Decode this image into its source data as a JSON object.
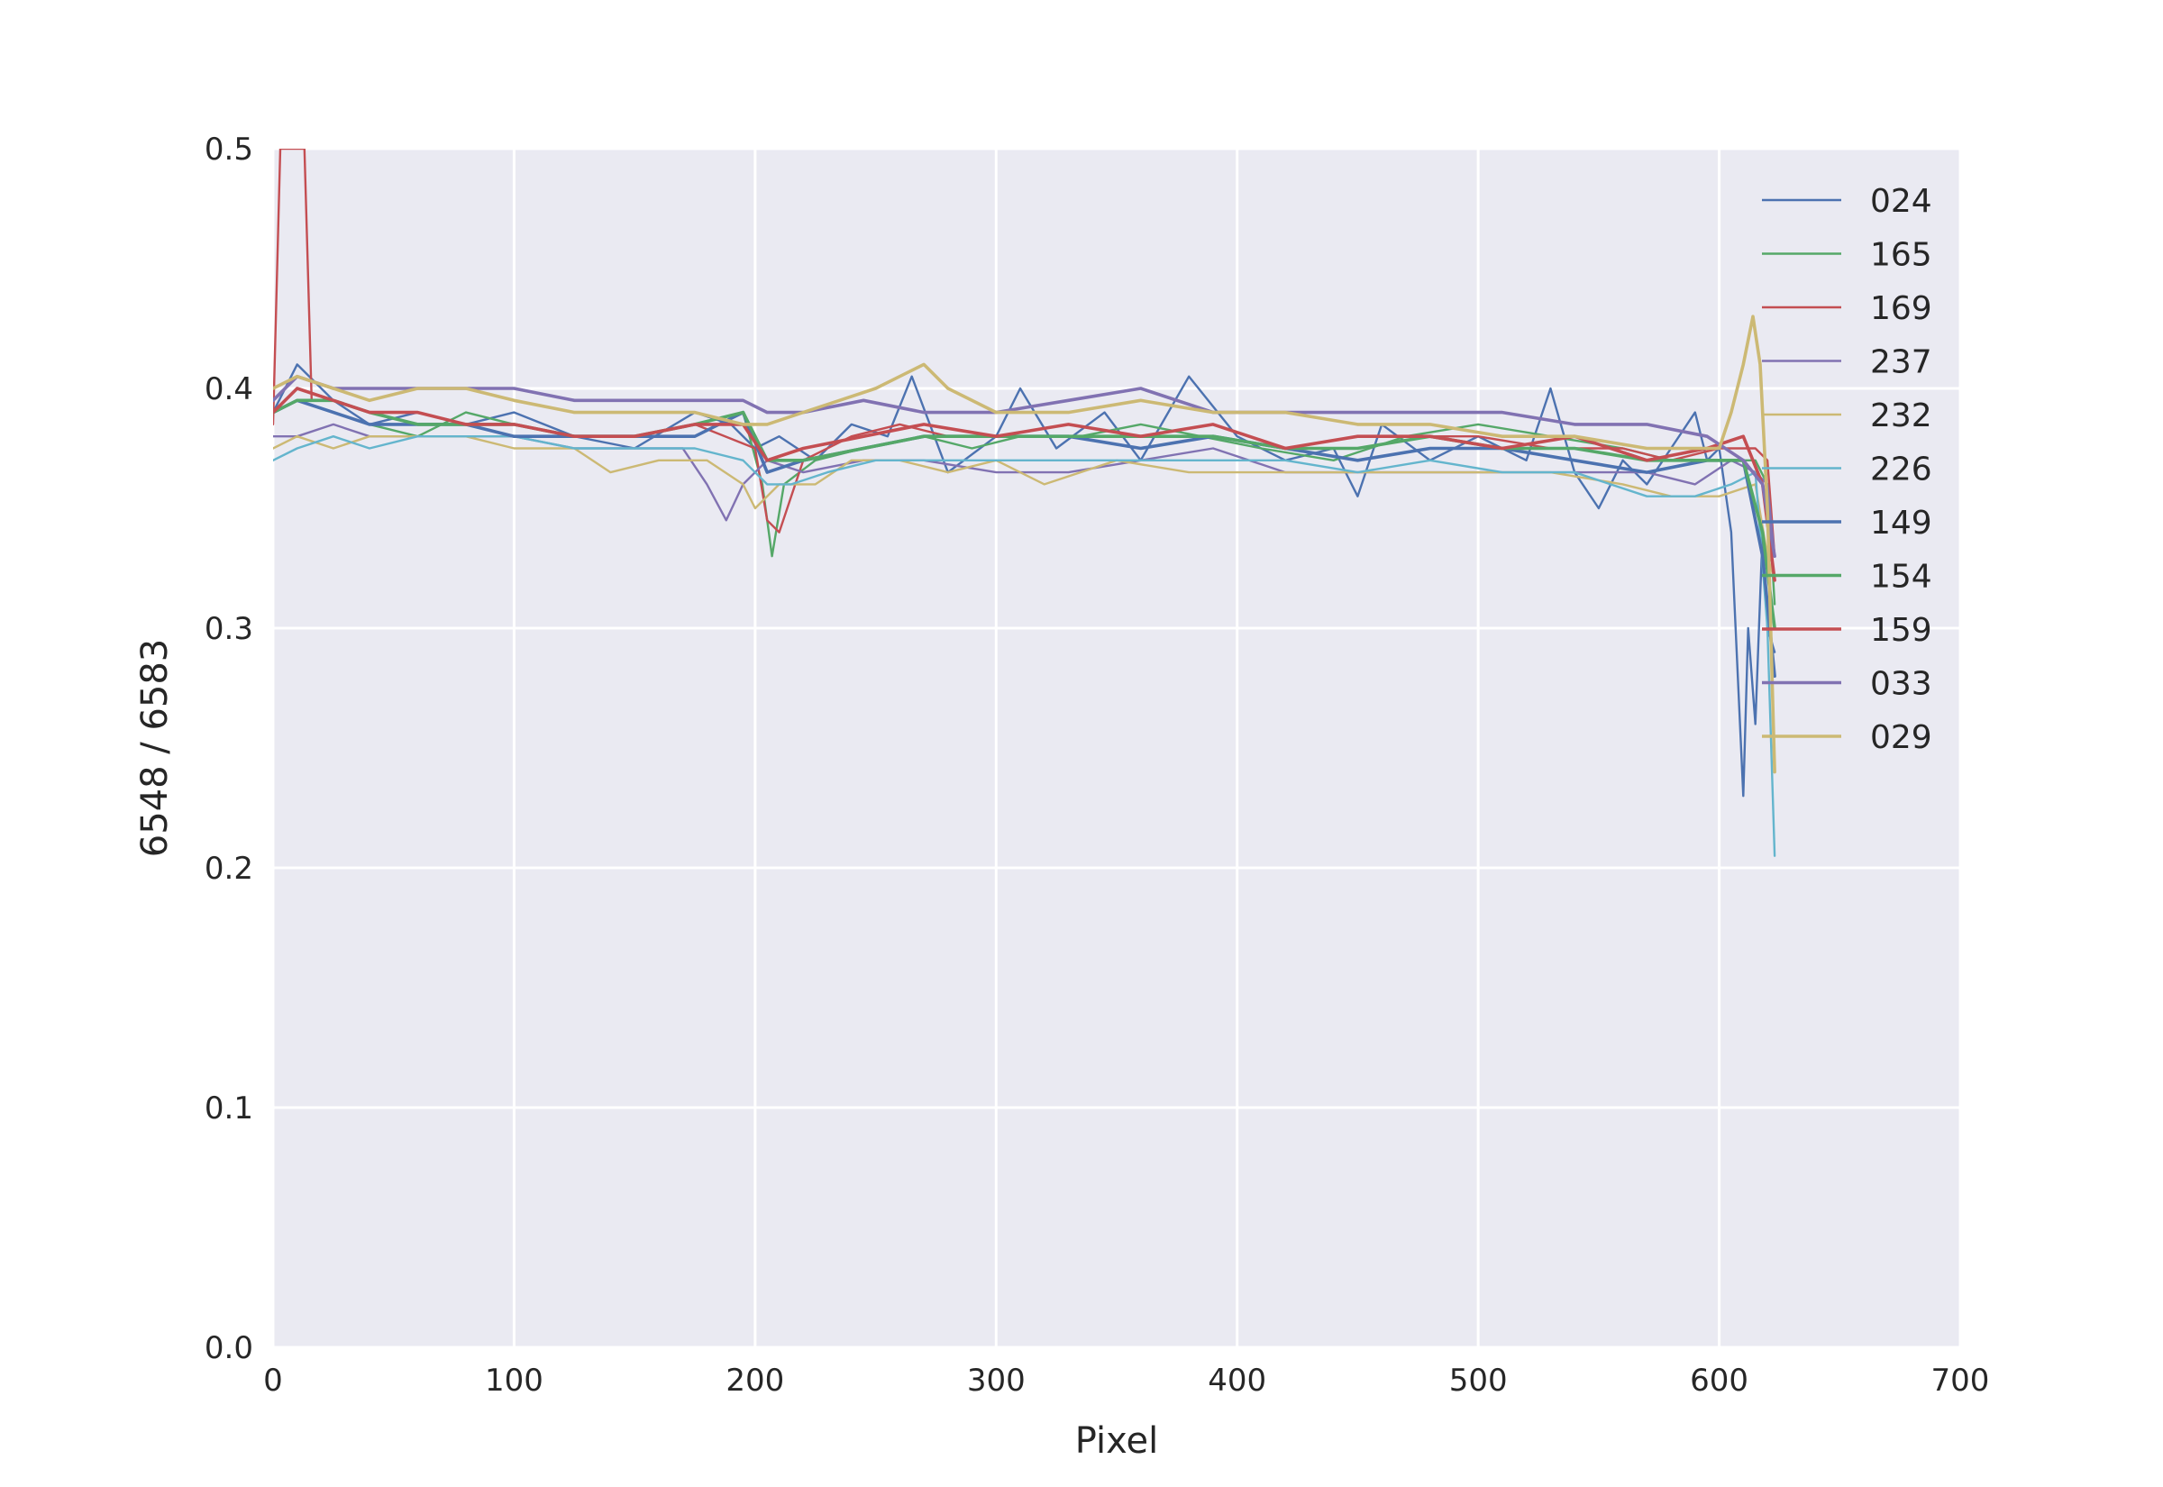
{
  "chart_data": {
    "type": "line",
    "xlabel": "Pixel",
    "ylabel": "6548 / 6583",
    "xlim": [
      0,
      700
    ],
    "ylim": [
      0.0,
      0.5
    ],
    "xticks": [
      0,
      100,
      200,
      300,
      400,
      500,
      600,
      700
    ],
    "yticks": [
      0.0,
      0.1,
      0.2,
      0.3,
      0.4,
      0.5
    ],
    "xtick_labels": [
      "0",
      "100",
      "200",
      "300",
      "400",
      "500",
      "600",
      "700"
    ],
    "ytick_labels": [
      "0.0",
      "0.1",
      "0.2",
      "0.3",
      "0.4",
      "0.5"
    ],
    "grid": true,
    "legend_position": "top-right",
    "background_color": "#eaeaf2",
    "series": [
      {
        "name": "024",
        "color": "#4c72b0",
        "x": [
          0,
          10,
          25,
          40,
          60,
          80,
          100,
          125,
          150,
          175,
          190,
          200,
          210,
          225,
          240,
          255,
          265,
          280,
          300,
          310,
          325,
          345,
          360,
          380,
          400,
          420,
          440,
          450,
          460,
          480,
          500,
          520,
          530,
          540,
          550,
          560,
          570,
          580,
          590,
          595,
          600,
          605,
          610,
          612,
          615,
          618,
          620,
          623
        ],
        "values": [
          0.39,
          0.41,
          0.395,
          0.385,
          0.39,
          0.385,
          0.39,
          0.38,
          0.375,
          0.39,
          0.385,
          0.375,
          0.38,
          0.37,
          0.385,
          0.38,
          0.405,
          0.365,
          0.38,
          0.4,
          0.375,
          0.39,
          0.37,
          0.405,
          0.38,
          0.37,
          0.375,
          0.355,
          0.385,
          0.37,
          0.38,
          0.37,
          0.4,
          0.365,
          0.35,
          0.37,
          0.36,
          0.375,
          0.39,
          0.37,
          0.375,
          0.34,
          0.23,
          0.3,
          0.26,
          0.34,
          0.3,
          0.29
        ]
      },
      {
        "name": "165",
        "color": "#55a868",
        "x": [
          0,
          10,
          25,
          40,
          60,
          80,
          100,
          125,
          150,
          175,
          195,
          203,
          207,
          212,
          225,
          245,
          270,
          290,
          310,
          335,
          360,
          385,
          410,
          440,
          470,
          500,
          530,
          560,
          580,
          600,
          615,
          620,
          623
        ],
        "values": [
          0.39,
          0.395,
          0.39,
          0.385,
          0.38,
          0.39,
          0.385,
          0.38,
          0.38,
          0.385,
          0.39,
          0.36,
          0.33,
          0.36,
          0.37,
          0.375,
          0.38,
          0.375,
          0.38,
          0.38,
          0.385,
          0.38,
          0.375,
          0.37,
          0.38,
          0.385,
          0.38,
          0.375,
          0.37,
          0.37,
          0.37,
          0.36,
          0.31
        ]
      },
      {
        "name": "169",
        "color": "#c44e52",
        "x": [
          0,
          3,
          6,
          10,
          13,
          16,
          25,
          40,
          60,
          80,
          100,
          125,
          150,
          175,
          200,
          205,
          210,
          220,
          240,
          260,
          280,
          300,
          330,
          360,
          390,
          420,
          450,
          480,
          500,
          530,
          560,
          580,
          600,
          615,
          620,
          623
        ],
        "values": [
          0.385,
          0.5,
          0.5,
          0.5,
          0.5,
          0.395,
          0.395,
          0.39,
          0.39,
          0.385,
          0.385,
          0.38,
          0.38,
          0.385,
          0.375,
          0.345,
          0.34,
          0.37,
          0.38,
          0.385,
          0.38,
          0.38,
          0.385,
          0.38,
          0.38,
          0.375,
          0.375,
          0.38,
          0.38,
          0.375,
          0.375,
          0.37,
          0.375,
          0.375,
          0.37,
          0.33
        ]
      },
      {
        "name": "237",
        "color": "#8172b2",
        "x": [
          0,
          10,
          25,
          40,
          60,
          80,
          100,
          125,
          150,
          170,
          180,
          188,
          195,
          205,
          220,
          245,
          270,
          300,
          330,
          360,
          390,
          420,
          450,
          480,
          510,
          540,
          570,
          590,
          605,
          615,
          620,
          623
        ],
        "values": [
          0.38,
          0.38,
          0.385,
          0.38,
          0.38,
          0.38,
          0.38,
          0.375,
          0.375,
          0.375,
          0.36,
          0.345,
          0.36,
          0.37,
          0.365,
          0.37,
          0.37,
          0.365,
          0.365,
          0.37,
          0.375,
          0.365,
          0.365,
          0.365,
          0.365,
          0.365,
          0.365,
          0.36,
          0.37,
          0.365,
          0.36,
          0.33
        ]
      },
      {
        "name": "232",
        "color": "#ccb974",
        "x": [
          0,
          10,
          25,
          40,
          60,
          80,
          100,
          125,
          140,
          160,
          180,
          195,
          200,
          210,
          225,
          240,
          260,
          280,
          300,
          320,
          350,
          380,
          410,
          440,
          470,
          500,
          530,
          560,
          580,
          600,
          615,
          620,
          623
        ],
        "values": [
          0.375,
          0.38,
          0.375,
          0.38,
          0.38,
          0.38,
          0.375,
          0.375,
          0.365,
          0.37,
          0.37,
          0.36,
          0.35,
          0.36,
          0.36,
          0.37,
          0.37,
          0.365,
          0.37,
          0.36,
          0.37,
          0.365,
          0.365,
          0.365,
          0.365,
          0.365,
          0.365,
          0.36,
          0.355,
          0.355,
          0.36,
          0.33,
          0.32
        ]
      },
      {
        "name": "226",
        "color": "#64b5cd",
        "x": [
          0,
          10,
          25,
          40,
          60,
          80,
          100,
          125,
          150,
          175,
          195,
          205,
          215,
          230,
          250,
          275,
          300,
          330,
          360,
          390,
          420,
          450,
          480,
          510,
          540,
          570,
          590,
          605,
          615,
          620,
          623
        ],
        "values": [
          0.37,
          0.375,
          0.38,
          0.375,
          0.38,
          0.38,
          0.38,
          0.375,
          0.375,
          0.375,
          0.37,
          0.36,
          0.36,
          0.365,
          0.37,
          0.37,
          0.37,
          0.37,
          0.37,
          0.37,
          0.37,
          0.365,
          0.37,
          0.365,
          0.365,
          0.355,
          0.355,
          0.36,
          0.365,
          0.3,
          0.205
        ]
      },
      {
        "name": "149",
        "color": "#4c72b0",
        "x": [
          0,
          10,
          25,
          40,
          60,
          80,
          100,
          125,
          150,
          175,
          195,
          205,
          220,
          245,
          270,
          300,
          330,
          360,
          390,
          420,
          450,
          480,
          510,
          540,
          570,
          595,
          610,
          618,
          623
        ],
        "values": [
          0.39,
          0.395,
          0.39,
          0.385,
          0.385,
          0.385,
          0.38,
          0.38,
          0.38,
          0.38,
          0.39,
          0.365,
          0.37,
          0.375,
          0.38,
          0.38,
          0.38,
          0.375,
          0.38,
          0.375,
          0.37,
          0.375,
          0.375,
          0.37,
          0.365,
          0.37,
          0.37,
          0.33,
          0.28
        ]
      },
      {
        "name": "154",
        "color": "#55a868",
        "x": [
          0,
          10,
          25,
          40,
          60,
          80,
          100,
          125,
          150,
          175,
          195,
          205,
          220,
          245,
          270,
          300,
          330,
          360,
          390,
          420,
          450,
          480,
          510,
          540,
          570,
          595,
          610,
          618,
          623
        ],
        "values": [
          0.39,
          0.395,
          0.395,
          0.39,
          0.385,
          0.385,
          0.385,
          0.38,
          0.38,
          0.385,
          0.39,
          0.37,
          0.37,
          0.375,
          0.38,
          0.38,
          0.38,
          0.38,
          0.38,
          0.375,
          0.375,
          0.38,
          0.375,
          0.375,
          0.37,
          0.37,
          0.37,
          0.34,
          0.3
        ]
      },
      {
        "name": "159",
        "color": "#c44e52",
        "x": [
          0,
          10,
          25,
          40,
          60,
          80,
          100,
          125,
          150,
          175,
          195,
          205,
          220,
          245,
          270,
          300,
          330,
          360,
          390,
          420,
          450,
          480,
          510,
          540,
          570,
          595,
          610,
          618,
          623
        ],
        "values": [
          0.39,
          0.4,
          0.395,
          0.39,
          0.39,
          0.385,
          0.385,
          0.38,
          0.38,
          0.385,
          0.385,
          0.37,
          0.375,
          0.38,
          0.385,
          0.38,
          0.385,
          0.38,
          0.385,
          0.375,
          0.38,
          0.38,
          0.375,
          0.38,
          0.37,
          0.375,
          0.38,
          0.36,
          0.32
        ]
      },
      {
        "name": "033",
        "color": "#8172b2",
        "x": [
          0,
          10,
          25,
          40,
          60,
          80,
          100,
          125,
          150,
          175,
          195,
          205,
          220,
          245,
          270,
          300,
          330,
          360,
          390,
          420,
          450,
          480,
          510,
          540,
          570,
          595,
          610,
          618,
          623
        ],
        "values": [
          0.395,
          0.405,
          0.4,
          0.4,
          0.4,
          0.4,
          0.4,
          0.395,
          0.395,
          0.395,
          0.395,
          0.39,
          0.39,
          0.395,
          0.39,
          0.39,
          0.395,
          0.4,
          0.39,
          0.39,
          0.39,
          0.39,
          0.39,
          0.385,
          0.385,
          0.38,
          0.37,
          0.36,
          0.33
        ]
      },
      {
        "name": "029",
        "color": "#ccb974",
        "x": [
          0,
          10,
          25,
          40,
          60,
          80,
          100,
          125,
          150,
          175,
          195,
          205,
          220,
          235,
          250,
          260,
          270,
          280,
          300,
          330,
          360,
          390,
          420,
          450,
          480,
          510,
          540,
          570,
          590,
          600,
          605,
          610,
          614,
          617,
          620,
          623
        ],
        "values": [
          0.4,
          0.405,
          0.4,
          0.395,
          0.4,
          0.4,
          0.395,
          0.39,
          0.39,
          0.39,
          0.385,
          0.385,
          0.39,
          0.395,
          0.4,
          0.405,
          0.41,
          0.4,
          0.39,
          0.39,
          0.395,
          0.39,
          0.39,
          0.385,
          0.385,
          0.38,
          0.38,
          0.375,
          0.375,
          0.375,
          0.39,
          0.41,
          0.43,
          0.41,
          0.35,
          0.24
        ]
      }
    ]
  }
}
